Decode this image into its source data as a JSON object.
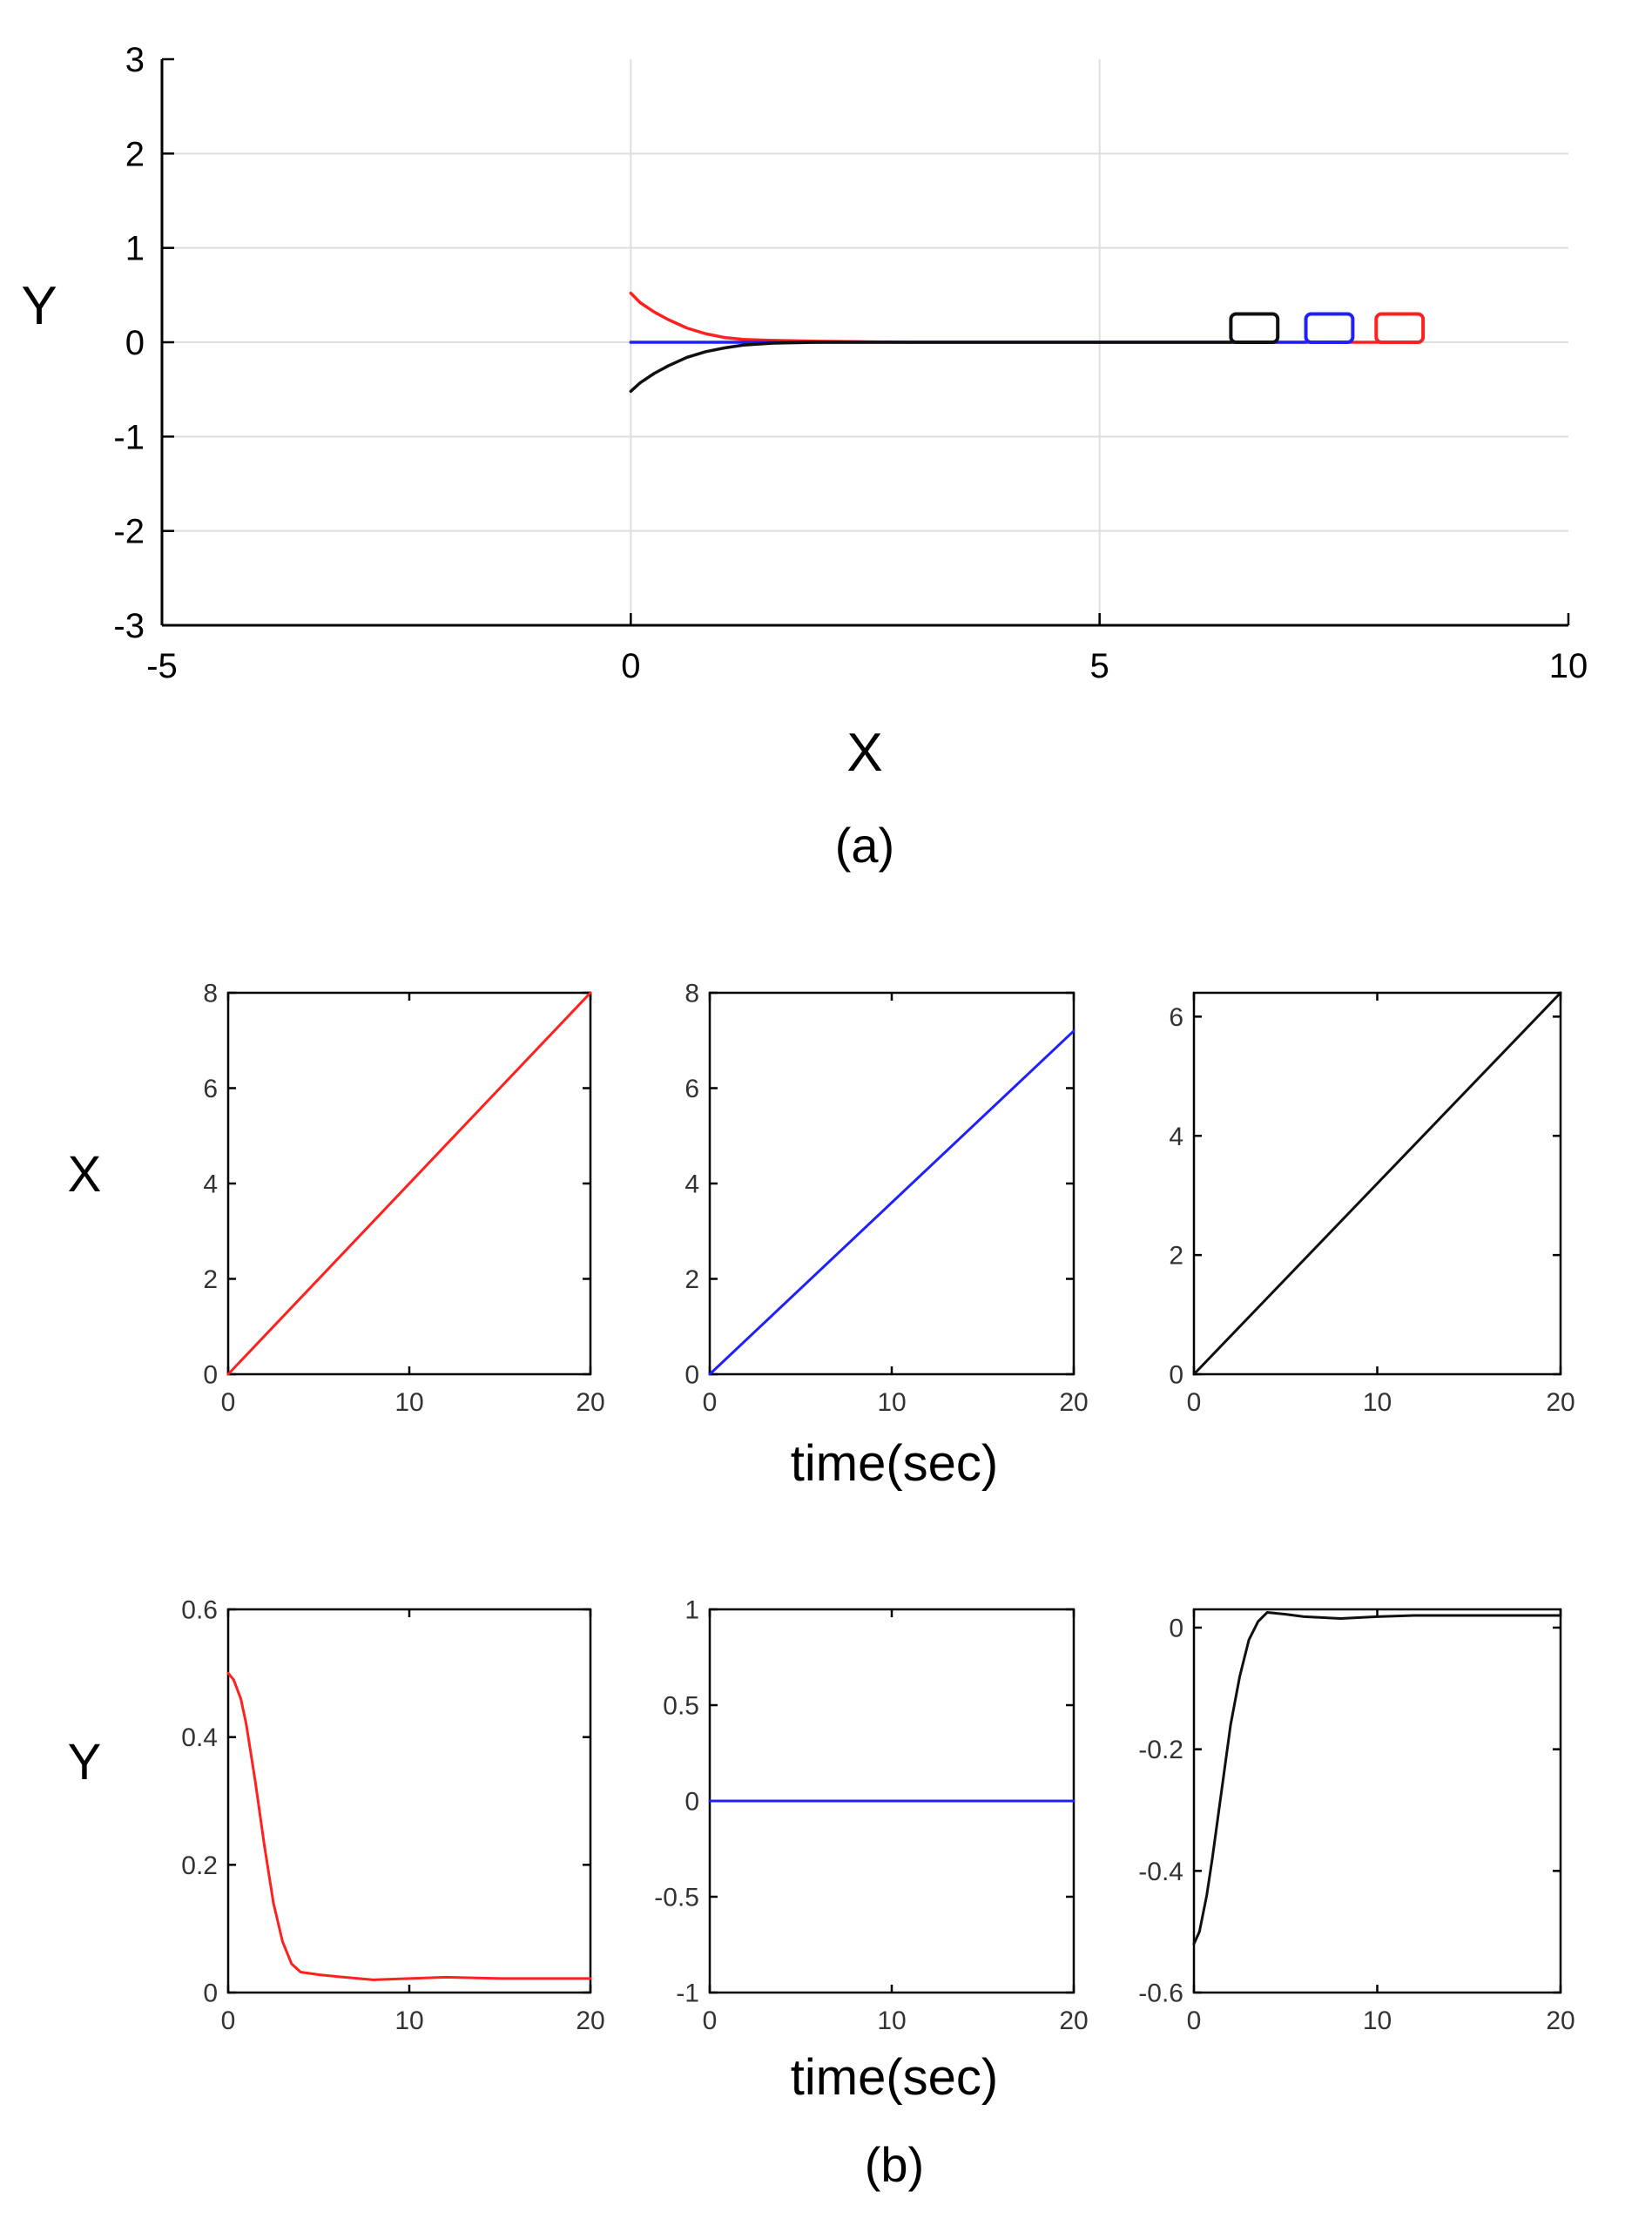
{
  "colors": {
    "red": "#ff2020",
    "blue": "#2020ff",
    "black": "#101010",
    "grid": "#dedede",
    "axis": "#000000"
  },
  "caption_a": "(a)",
  "caption_b": "(b)",
  "row_label_x": "X",
  "row_label_y": "Y",
  "chart_data": [
    {
      "id": "a",
      "type": "line",
      "xlabel": "X",
      "ylabel": "Y",
      "xlim": [
        -5,
        10
      ],
      "ylim": [
        -3,
        3
      ],
      "xticks": [
        -5,
        0,
        5,
        10
      ],
      "yticks": [
        -3,
        -2,
        -1,
        0,
        1,
        2,
        3
      ],
      "grid": true,
      "series": [
        {
          "color": "red",
          "x": [
            0,
            0.1,
            0.25,
            0.4,
            0.6,
            0.8,
            1.0,
            1.2,
            1.5,
            2.0,
            3.0,
            4.5,
            6.0,
            8.0
          ],
          "y": [
            0.52,
            0.42,
            0.32,
            0.24,
            0.15,
            0.09,
            0.05,
            0.03,
            0.02,
            0.01,
            0.0,
            0.0,
            0.0,
            0.0
          ]
        },
        {
          "color": "blue",
          "x": [
            0,
            2,
            4,
            6,
            7.2
          ],
          "y": [
            0,
            0,
            0,
            0,
            0
          ]
        },
        {
          "color": "black",
          "x": [
            0,
            0.1,
            0.25,
            0.4,
            0.6,
            0.8,
            1.0,
            1.2,
            1.5,
            2.0,
            3.0,
            4.5,
            6.4
          ],
          "y": [
            -0.52,
            -0.43,
            -0.33,
            -0.25,
            -0.16,
            -0.1,
            -0.06,
            -0.03,
            -0.01,
            0.0,
            0.0,
            0.0,
            0.0
          ]
        }
      ],
      "markers": [
        {
          "color": "black",
          "x": [
            6.4,
            6.9
          ],
          "y": [
            0,
            0.3
          ]
        },
        {
          "color": "blue",
          "x": [
            7.2,
            7.7
          ],
          "y": [
            0,
            0.3
          ]
        },
        {
          "color": "red",
          "x": [
            7.95,
            8.45
          ],
          "y": [
            0,
            0.3
          ]
        }
      ]
    },
    {
      "id": "b-x-1",
      "type": "line",
      "xlim": [
        0,
        20
      ],
      "ylim": [
        0,
        8
      ],
      "xticks": [
        0,
        10,
        20
      ],
      "yticks": [
        0,
        2,
        4,
        6,
        8
      ],
      "grid": false,
      "series": [
        {
          "color": "red",
          "x": [
            0,
            20
          ],
          "y": [
            0,
            8
          ]
        }
      ]
    },
    {
      "id": "b-x-2",
      "type": "line",
      "xlim": [
        0,
        20
      ],
      "ylim": [
        0,
        8
      ],
      "xticks": [
        0,
        10,
        20
      ],
      "yticks": [
        0,
        2,
        4,
        6,
        8
      ],
      "grid": false,
      "xlabel": "time(sec)",
      "series": [
        {
          "color": "blue",
          "x": [
            0,
            20
          ],
          "y": [
            0,
            7.2
          ]
        }
      ]
    },
    {
      "id": "b-x-3",
      "type": "line",
      "xlim": [
        0,
        20
      ],
      "ylim": [
        0,
        6.4
      ],
      "xticks": [
        0,
        10,
        20
      ],
      "yticks": [
        0,
        2,
        4,
        6
      ],
      "grid": false,
      "series": [
        {
          "color": "black",
          "x": [
            0,
            20
          ],
          "y": [
            0,
            6.4
          ]
        }
      ]
    },
    {
      "id": "b-y-1",
      "type": "line",
      "xlim": [
        0,
        20
      ],
      "ylim": [
        0,
        0.6
      ],
      "xticks": [
        0,
        10,
        20
      ],
      "yticks": [
        0,
        0.2,
        0.4,
        0.6
      ],
      "grid": false,
      "series": [
        {
          "color": "red",
          "x": [
            0,
            0.3,
            0.7,
            1.0,
            1.5,
            2.0,
            2.5,
            3.0,
            3.5,
            4.0,
            5.0,
            6.0,
            8.0,
            10.0,
            12.0,
            15.0,
            20.0
          ],
          "y": [
            0.5,
            0.49,
            0.46,
            0.42,
            0.33,
            0.23,
            0.14,
            0.08,
            0.045,
            0.032,
            0.028,
            0.025,
            0.02,
            0.022,
            0.024,
            0.022,
            0.022
          ]
        }
      ]
    },
    {
      "id": "b-y-2",
      "type": "line",
      "xlim": [
        0,
        20
      ],
      "ylim": [
        -1,
        1
      ],
      "xticks": [
        0,
        10,
        20
      ],
      "yticks": [
        -1,
        -0.5,
        0,
        0.5,
        1
      ],
      "grid": false,
      "xlabel": "time(sec)",
      "series": [
        {
          "color": "blue",
          "x": [
            0,
            20
          ],
          "y": [
            0,
            0
          ]
        }
      ]
    },
    {
      "id": "b-y-3",
      "type": "line",
      "xlim": [
        0,
        20
      ],
      "ylim": [
        -0.6,
        0.03
      ],
      "xticks": [
        0,
        10,
        20
      ],
      "yticks": [
        -0.6,
        -0.4,
        -0.2,
        0
      ],
      "grid": false,
      "series": [
        {
          "color": "black",
          "x": [
            0,
            0.3,
            0.7,
            1.0,
            1.5,
            2.0,
            2.5,
            3.0,
            3.5,
            4.0,
            5.0,
            6.0,
            8.0,
            10.0,
            12.0,
            15.0,
            20.0
          ],
          "y": [
            -0.52,
            -0.5,
            -0.44,
            -0.38,
            -0.27,
            -0.16,
            -0.08,
            -0.02,
            0.01,
            0.025,
            0.022,
            0.018,
            0.015,
            0.018,
            0.02,
            0.02,
            0.02
          ]
        }
      ]
    }
  ]
}
